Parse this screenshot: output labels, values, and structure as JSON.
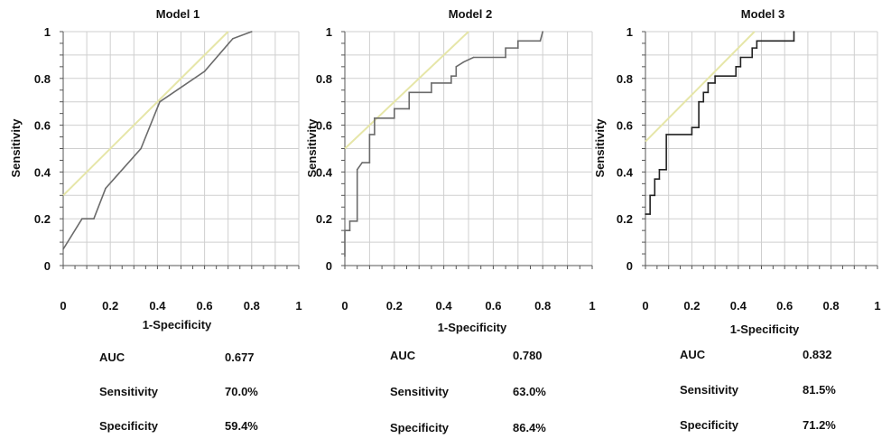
{
  "chart_data": [
    {
      "type": "line",
      "title": "Model 1",
      "xlabel": "1-Specificity",
      "ylabel": "Sensitivity",
      "xlim": [
        0,
        1
      ],
      "ylim": [
        0,
        1
      ],
      "x_ticks": [
        "0",
        "0.2",
        "0.4",
        "0.6",
        "0.8",
        "1"
      ],
      "y_ticks": [
        "0",
        "0.2",
        "0.4",
        "0.6",
        "0.8",
        "1"
      ],
      "grid": true,
      "colors": {
        "roc": "#6b6b6b",
        "reference": "#e6e6a8",
        "grid": "#cfcfcf"
      },
      "series": [
        {
          "points": [
            [
              0,
              0.07
            ],
            [
              0.08,
              0.2
            ],
            [
              0.13,
              0.2
            ],
            [
              0.18,
              0.33
            ],
            [
              0.33,
              0.5
            ],
            [
              0.41,
              0.7
            ],
            [
              0.6,
              0.83
            ],
            [
              0.72,
              0.97
            ],
            [
              0.8,
              1
            ]
          ]
        }
      ],
      "reference_line": [
        [
          0,
          0.3
        ],
        [
          0.7,
          1
        ]
      ],
      "stats": [
        {
          "label": "AUC",
          "value": "0.677"
        },
        {
          "label": "Sensitivity",
          "value": "70.0%"
        },
        {
          "label": "Specificity",
          "value": "59.4%"
        }
      ]
    },
    {
      "type": "line",
      "title": "Model 2",
      "xlabel": "1-Specificity",
      "ylabel": "Sensitivity",
      "xlim": [
        0,
        1
      ],
      "ylim": [
        0,
        1
      ],
      "x_ticks": [
        "0",
        "0.2",
        "0.4",
        "0.6",
        "0.8",
        "1"
      ],
      "y_ticks": [
        "0",
        "0.2",
        "0.4",
        "0.6",
        "0.8",
        "1"
      ],
      "grid": true,
      "colors": {
        "roc": "#6b6b6b",
        "reference": "#e6e6a8",
        "grid": "#cfcfcf"
      },
      "series": [
        {
          "points": [
            [
              0,
              0.04
            ],
            [
              0,
              0.15
            ],
            [
              0.02,
              0.15
            ],
            [
              0.02,
              0.19
            ],
            [
              0.05,
              0.19
            ],
            [
              0.05,
              0.41
            ],
            [
              0.07,
              0.44
            ],
            [
              0.1,
              0.44
            ],
            [
              0.1,
              0.56
            ],
            [
              0.12,
              0.56
            ],
            [
              0.12,
              0.63
            ],
            [
              0.2,
              0.63
            ],
            [
              0.2,
              0.67
            ],
            [
              0.26,
              0.67
            ],
            [
              0.26,
              0.74
            ],
            [
              0.35,
              0.74
            ],
            [
              0.35,
              0.78
            ],
            [
              0.43,
              0.78
            ],
            [
              0.43,
              0.81
            ],
            [
              0.45,
              0.81
            ],
            [
              0.45,
              0.85
            ],
            [
              0.48,
              0.87
            ],
            [
              0.52,
              0.89
            ],
            [
              0.65,
              0.89
            ],
            [
              0.65,
              0.93
            ],
            [
              0.7,
              0.93
            ],
            [
              0.7,
              0.96
            ],
            [
              0.79,
              0.96
            ],
            [
              0.8,
              1
            ]
          ]
        }
      ],
      "reference_line": [
        [
          0,
          0.5
        ],
        [
          0.5,
          1
        ]
      ],
      "stats": [
        {
          "label": "AUC",
          "value": "0.780"
        },
        {
          "label": "Sensitivity",
          "value": "63.0%"
        },
        {
          "label": "Specificity",
          "value": "86.4%"
        }
      ]
    },
    {
      "type": "line",
      "title": "Model 3",
      "xlabel": "1-Specificity",
      "ylabel": "Sensitivity",
      "xlim": [
        0,
        1
      ],
      "ylim": [
        0,
        1
      ],
      "x_ticks": [
        "0",
        "0.2",
        "0.4",
        "0.6",
        "0.8",
        "1"
      ],
      "y_ticks": [
        "0",
        "0.2",
        "0.4",
        "0.6",
        "0.8",
        "1"
      ],
      "grid": true,
      "colors": {
        "roc": "#222222",
        "reference": "#e6e6a8",
        "grid": "#cfcfcf"
      },
      "series": [
        {
          "points": [
            [
              0,
              0.22
            ],
            [
              0.02,
              0.22
            ],
            [
              0.02,
              0.3
            ],
            [
              0.04,
              0.3
            ],
            [
              0.04,
              0.37
            ],
            [
              0.06,
              0.37
            ],
            [
              0.06,
              0.41
            ],
            [
              0.09,
              0.41
            ],
            [
              0.09,
              0.56
            ],
            [
              0.2,
              0.56
            ],
            [
              0.2,
              0.59
            ],
            [
              0.23,
              0.59
            ],
            [
              0.23,
              0.7
            ],
            [
              0.25,
              0.7
            ],
            [
              0.25,
              0.74
            ],
            [
              0.27,
              0.74
            ],
            [
              0.27,
              0.78
            ],
            [
              0.3,
              0.78
            ],
            [
              0.3,
              0.81
            ],
            [
              0.39,
              0.81
            ],
            [
              0.39,
              0.85
            ],
            [
              0.41,
              0.85
            ],
            [
              0.41,
              0.89
            ],
            [
              0.46,
              0.89
            ],
            [
              0.46,
              0.93
            ],
            [
              0.48,
              0.93
            ],
            [
              0.48,
              0.96
            ],
            [
              0.64,
              0.96
            ],
            [
              0.64,
              1
            ]
          ]
        }
      ],
      "reference_line": [
        [
          0,
          0.53
        ],
        [
          0.47,
          1
        ]
      ],
      "stats": [
        {
          "label": "AUC",
          "value": "0.832"
        },
        {
          "label": "Sensitivity",
          "value": "81.5%"
        },
        {
          "label": "Specificity",
          "value": "71.2%"
        }
      ]
    }
  ]
}
